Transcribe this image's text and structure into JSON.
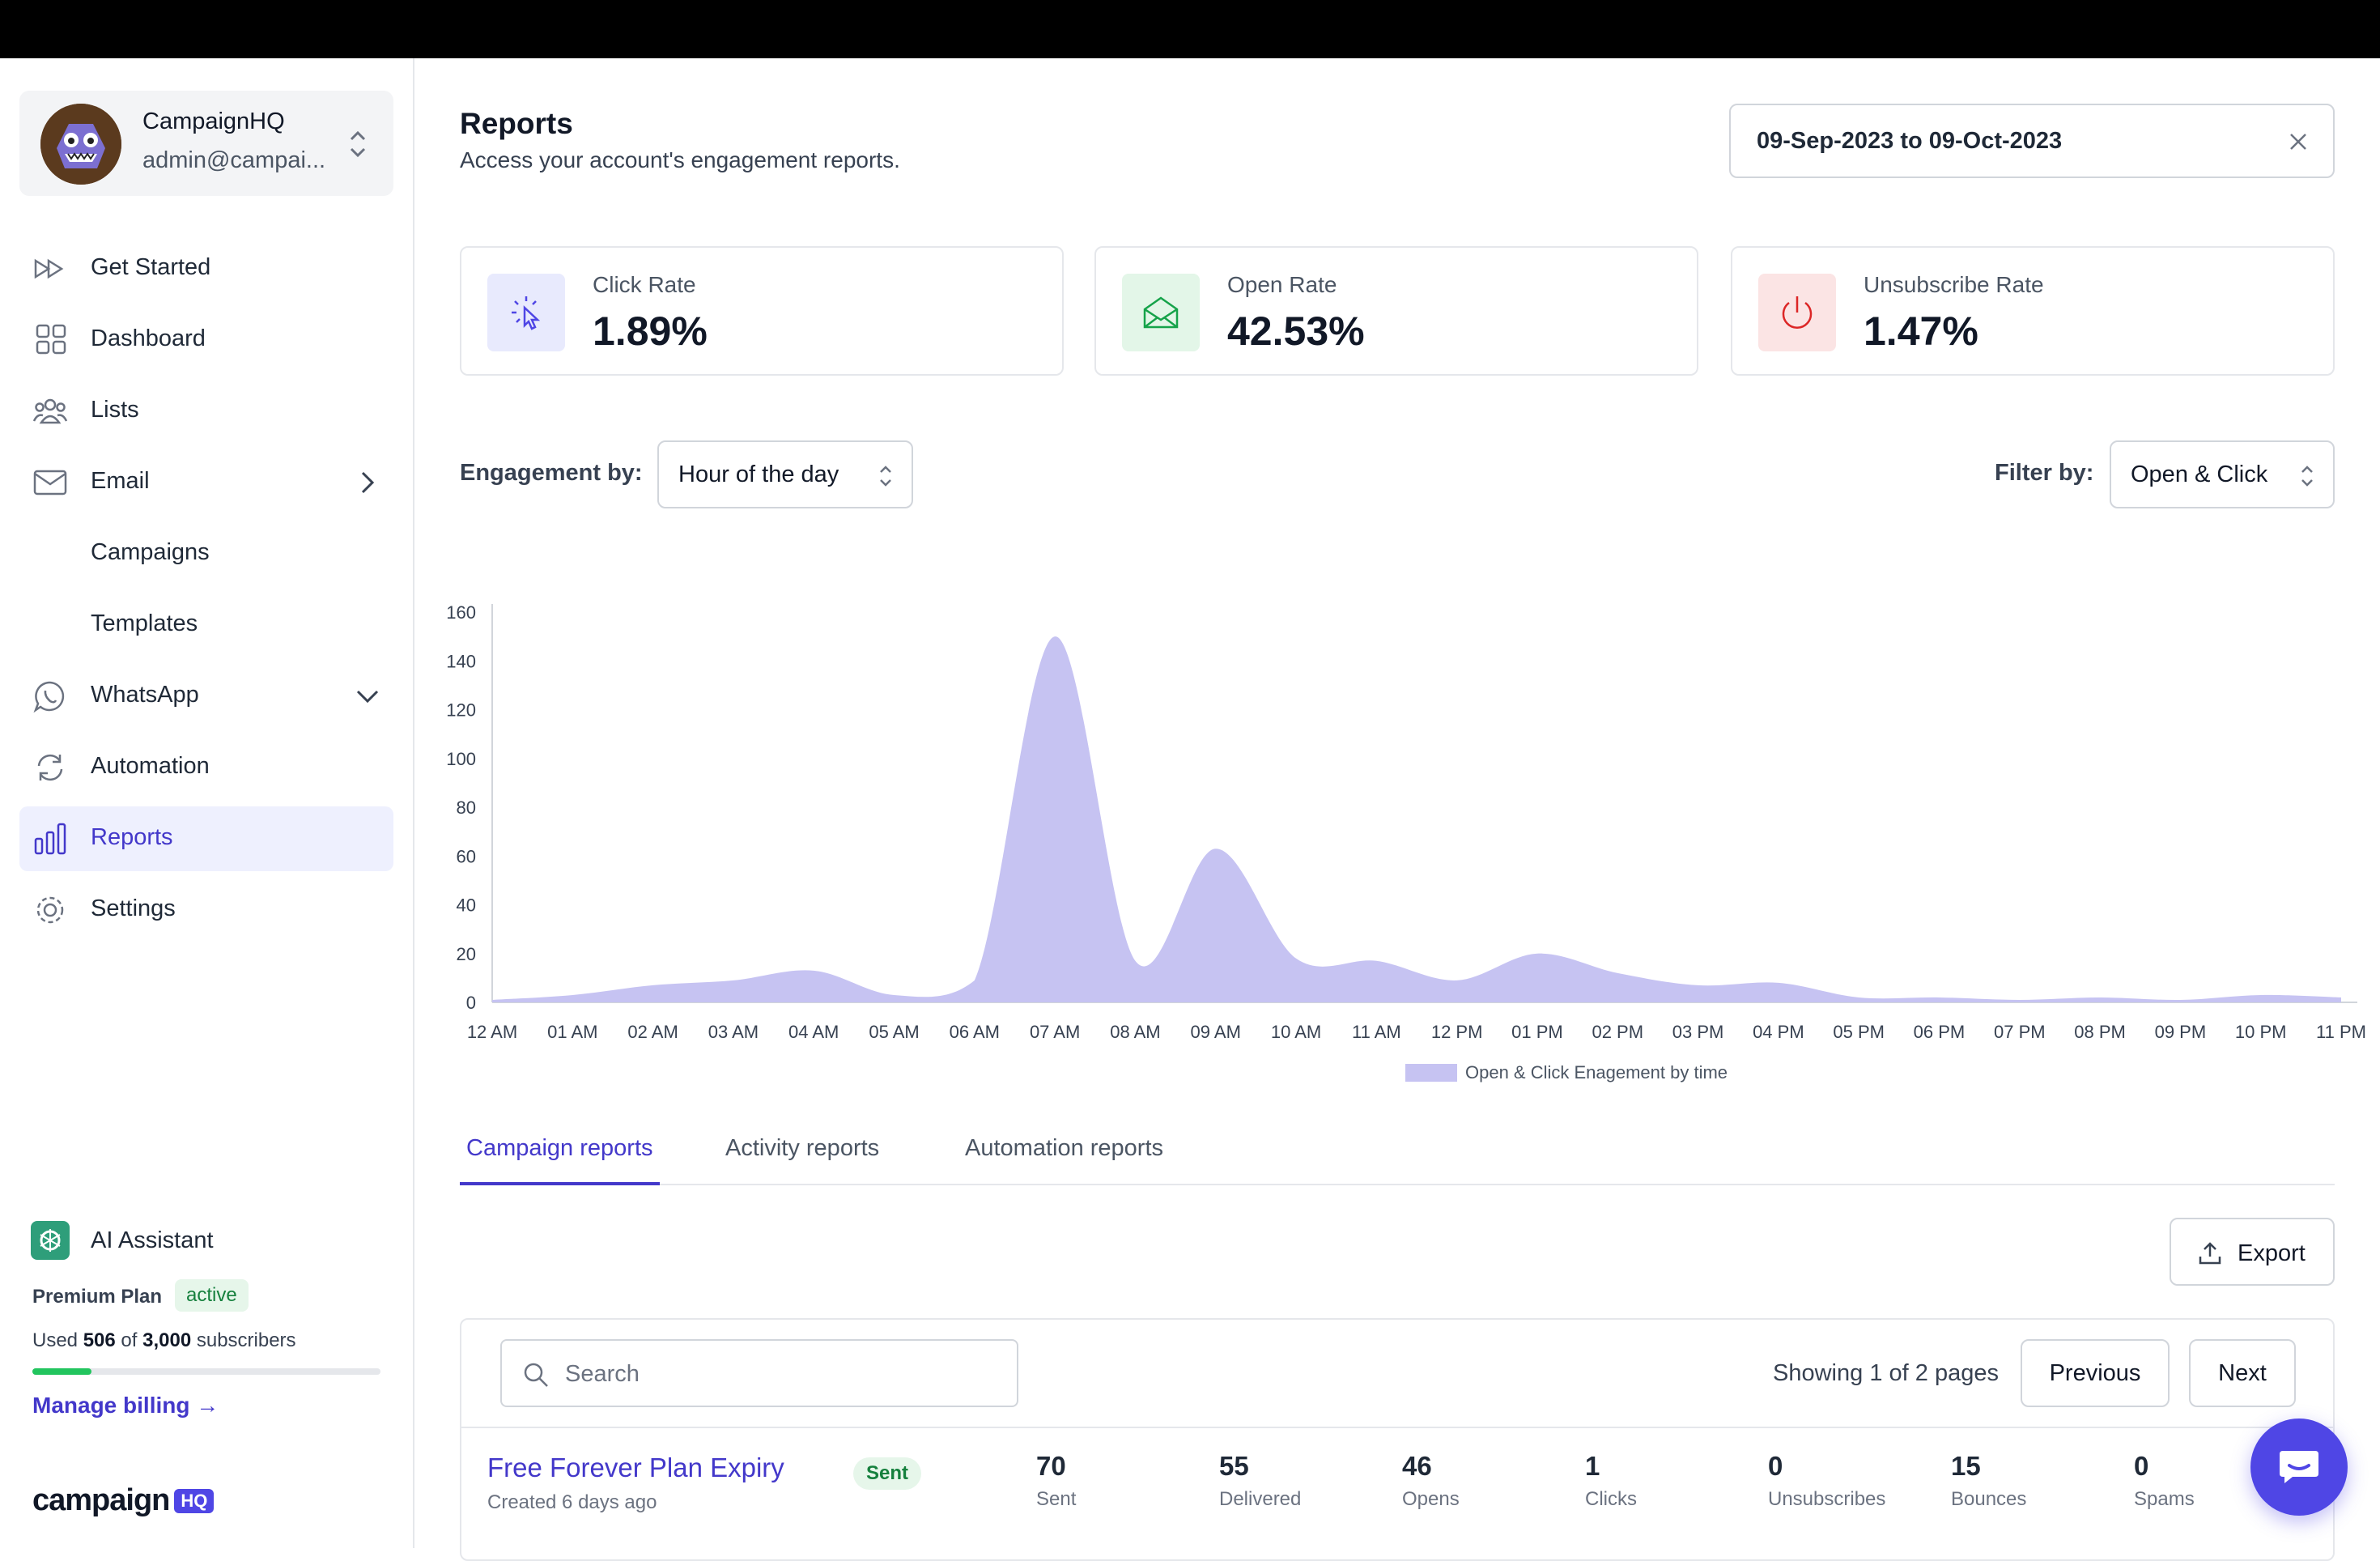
{
  "account": {
    "name": "CampaignHQ",
    "email": "admin@campai..."
  },
  "sidebar": {
    "items": [
      {
        "label": "Get Started"
      },
      {
        "label": "Dashboard"
      },
      {
        "label": "Lists"
      },
      {
        "label": "Email"
      },
      {
        "label": "Campaigns"
      },
      {
        "label": "Templates"
      },
      {
        "label": "WhatsApp"
      },
      {
        "label": "Automation"
      },
      {
        "label": "Reports"
      },
      {
        "label": "Settings"
      }
    ],
    "active": "Reports",
    "ai_assistant": "AI Assistant",
    "plan": {
      "name": "Premium Plan",
      "status": "active"
    },
    "usage": {
      "prefix": "Used",
      "used": "506",
      "of": "of",
      "total": "3,000",
      "suffix": "subscribers",
      "fraction": 0.169
    },
    "billing_link": "Manage billing →",
    "brand": {
      "word": "campaign",
      "badge": "HQ"
    }
  },
  "header": {
    "title": "Reports",
    "subtitle": "Access your account's engagement reports.",
    "date_range": "09-Sep-2023 to 09-Oct-2023"
  },
  "stats": [
    {
      "label": "Click Rate",
      "value": "1.89%",
      "icon": "cursor-click-icon",
      "color": "#4f46e5",
      "bg": "#e8eafd"
    },
    {
      "label": "Open Rate",
      "value": "42.53%",
      "icon": "mail-open-icon",
      "color": "#16a34a",
      "bg": "#e3f6e8"
    },
    {
      "label": "Unsubscribe Rate",
      "value": "1.47%",
      "icon": "power-icon",
      "color": "#dc2626",
      "bg": "#fbe4e4"
    }
  ],
  "controls": {
    "engagement_label": "Engagement by:",
    "engagement_value": "Hour of the day",
    "filter_label": "Filter by:",
    "filter_value": "Open & Click"
  },
  "chart_data": {
    "type": "area",
    "x": [
      "12 AM",
      "01 AM",
      "02 AM",
      "03 AM",
      "04 AM",
      "05 AM",
      "06 AM",
      "07 AM",
      "08 AM",
      "09 AM",
      "10 AM",
      "11 AM",
      "12 PM",
      "01 PM",
      "02 PM",
      "03 PM",
      "04 PM",
      "05 PM",
      "06 PM",
      "07 PM",
      "08 PM",
      "09 PM",
      "10 PM",
      "11 PM"
    ],
    "series": [
      {
        "name": "Open & Click Enagement by time",
        "values": [
          1,
          3,
          7,
          9,
          13,
          3,
          9,
          150,
          17,
          63,
          18,
          17,
          9,
          20,
          12,
          7,
          8,
          2,
          2,
          1,
          2,
          1,
          3,
          2
        ],
        "color": "#c6c3f2"
      }
    ],
    "ylim": [
      0,
      160
    ],
    "yticks": [
      0,
      20,
      40,
      60,
      80,
      100,
      120,
      140,
      160
    ],
    "grid": false,
    "legend": "bottom"
  },
  "tabs": [
    {
      "label": "Campaign reports",
      "active": true
    },
    {
      "label": "Activity reports",
      "active": false
    },
    {
      "label": "Automation reports",
      "active": false
    }
  ],
  "table": {
    "export_label": "Export",
    "search_placeholder": "Search",
    "paging": {
      "prefix": "Showing",
      "current": "1",
      "of": "of",
      "total": "2",
      "suffix": "pages"
    },
    "prev_label": "Previous",
    "next_label": "Next",
    "rows": [
      {
        "name": "Free Forever Plan Expiry",
        "created": "Created 6 days ago",
        "status": "Sent",
        "metrics": [
          {
            "value": "70",
            "label": "Sent"
          },
          {
            "value": "55",
            "label": "Delivered"
          },
          {
            "value": "46",
            "label": "Opens"
          },
          {
            "value": "1",
            "label": "Clicks"
          },
          {
            "value": "0",
            "label": "Unsubscribes"
          },
          {
            "value": "15",
            "label": "Bounces"
          },
          {
            "value": "0",
            "label": "Spams"
          }
        ]
      }
    ]
  }
}
